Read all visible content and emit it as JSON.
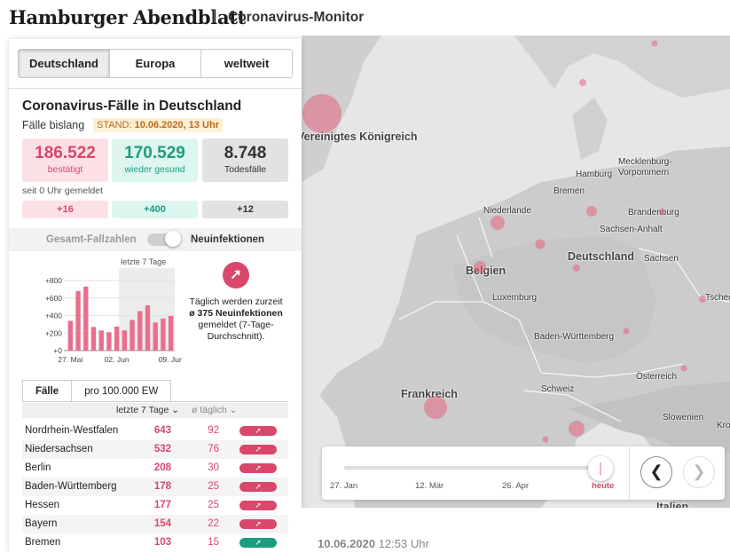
{
  "header": {
    "logo": "Hamburger Abendblatt",
    "title": "Coronavirus-Monitor"
  },
  "region_tabs": [
    {
      "label": "Deutschland",
      "active": true
    },
    {
      "label": "Europa",
      "active": false
    },
    {
      "label": "weltweit",
      "active": false
    }
  ],
  "panel": {
    "title": "Coronavirus-Fälle in Deutschland",
    "subtitle": "Fälle bislang",
    "stand_label": "STAND:",
    "stand_value": "10.06.2020, 13 Uhr",
    "stats": {
      "confirmed": {
        "value": "186.522",
        "label": "bestätigt"
      },
      "recovered": {
        "value": "170.529",
        "label": "wieder gesund"
      },
      "deaths": {
        "value": "8.748",
        "label": "Todesfälle"
      }
    },
    "since_label": "seit 0 Uhr gemeldet",
    "deltas": {
      "confirmed": "+16",
      "recovered": "+400",
      "deaths": "+12"
    },
    "toggle": {
      "left": "Gesamt-Fallzahlen",
      "right": "Neuinfektionen",
      "state": "Neuinfektionen"
    },
    "info_line1": "Täglich werden zurzeit",
    "info_avg": "ø 375 Neuinfektionen",
    "info_line2": "gemeldet (7-Tage-Durchschnitt).",
    "table_tabs": [
      {
        "label": "Fälle",
        "active": true
      },
      {
        "label": "pro 100.000 EW",
        "active": false
      }
    ],
    "table_headers": {
      "seven_days": "letzte 7 Tage",
      "daily": "ø täglich"
    },
    "rows": [
      {
        "name": "Nordrhein-Westfalen",
        "seven": "643",
        "daily": "92",
        "trend": "up"
      },
      {
        "name": "Niedersachsen",
        "seven": "532",
        "daily": "76",
        "trend": "up"
      },
      {
        "name": "Berlin",
        "seven": "208",
        "daily": "30",
        "trend": "up"
      },
      {
        "name": "Baden-Württemberg",
        "seven": "178",
        "daily": "25",
        "trend": "up"
      },
      {
        "name": "Hessen",
        "seven": "177",
        "daily": "25",
        "trend": "up"
      },
      {
        "name": "Bayern",
        "seven": "154",
        "daily": "22",
        "trend": "up"
      },
      {
        "name": "Bremen",
        "seven": "103",
        "daily": "15",
        "trend": "green"
      }
    ]
  },
  "chart_data": {
    "type": "bar",
    "series_label": "Neuinfektionen",
    "highlight_label": "letzte 7 Tage",
    "yticks": [
      "+0",
      "+200",
      "+400",
      "+600",
      "+800"
    ],
    "xticks": [
      "27. Mai",
      "02. Jun",
      "09. Jun"
    ],
    "ylim": [
      0,
      800
    ],
    "values": [
      340,
      680,
      730,
      270,
      230,
      210,
      275,
      230,
      350,
      450,
      515,
      320,
      365,
      395
    ],
    "highlight_from_index": 7
  },
  "map": {
    "labels": [
      {
        "text": "Vereinigtes Königreich",
        "kind": "country"
      },
      {
        "text": "Niederlande"
      },
      {
        "text": "Belgien",
        "kind": "country"
      },
      {
        "text": "Luxemburg"
      },
      {
        "text": "Deutschland",
        "kind": "country"
      },
      {
        "text": "Frankreich",
        "kind": "country"
      },
      {
        "text": "Schweiz"
      },
      {
        "text": "Österreich"
      },
      {
        "text": "Tschechien"
      },
      {
        "text": "Slowenien"
      },
      {
        "text": "Kro"
      },
      {
        "text": "Italien",
        "kind": "country"
      },
      {
        "text": "Hamburg"
      },
      {
        "text": "Bremen"
      },
      {
        "text": "Mecklenburg-Vorpommern"
      },
      {
        "text": "Brandenburg"
      },
      {
        "text": "Sachsen-Anhalt"
      },
      {
        "text": "Sachsen"
      },
      {
        "text": "Baden-Württemberg"
      }
    ]
  },
  "timeline": {
    "labels": [
      "27. Jan",
      "12. Mär",
      "26. Apr",
      "heute"
    ],
    "position": 1.0
  },
  "footer": {
    "date": "10.06.2020",
    "time": "12:53 Uhr"
  },
  "colors": {
    "accent": "#d9476a",
    "recovered": "#1d9c82",
    "bubble": "#e85a78"
  }
}
